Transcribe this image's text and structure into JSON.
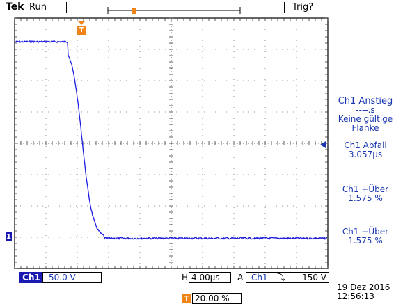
{
  "header": {
    "brand": "Tek",
    "run_state": "Run",
    "trigger_status": "Trig?"
  },
  "markers": {
    "trigger_position_label": "T",
    "channel1_label": "1"
  },
  "measurements": [
    {
      "title": "Ch1 Anstieg",
      "lines": [
        "----.s",
        "Keine gültige",
        "Flanke"
      ]
    },
    {
      "title": "Ch1 Abfall",
      "lines": [
        "3.057µs"
      ]
    },
    {
      "title": "Ch1 +Über",
      "lines": [
        "1.575 %"
      ]
    },
    {
      "title": "Ch1 −Über",
      "lines": [
        "1.575 %"
      ]
    }
  ],
  "status_bar": {
    "channel": "Ch1",
    "volts_per_div": "50.0 V",
    "horizontal_prefix": "H",
    "time_per_div": "4.00µs",
    "acquire_prefix": "A",
    "trigger_channel": "Ch1",
    "trigger_slope_symbol": "⤵",
    "trigger_level": "150 V",
    "trigger_position_percent": "20.00 %"
  },
  "timestamp": {
    "date": "19 Dez  2016",
    "time": "12:56:13"
  },
  "colors": {
    "trace": "#1a1ae0",
    "accent_blue": "#1a37b0",
    "trigger_orange": "#f08418"
  }
}
